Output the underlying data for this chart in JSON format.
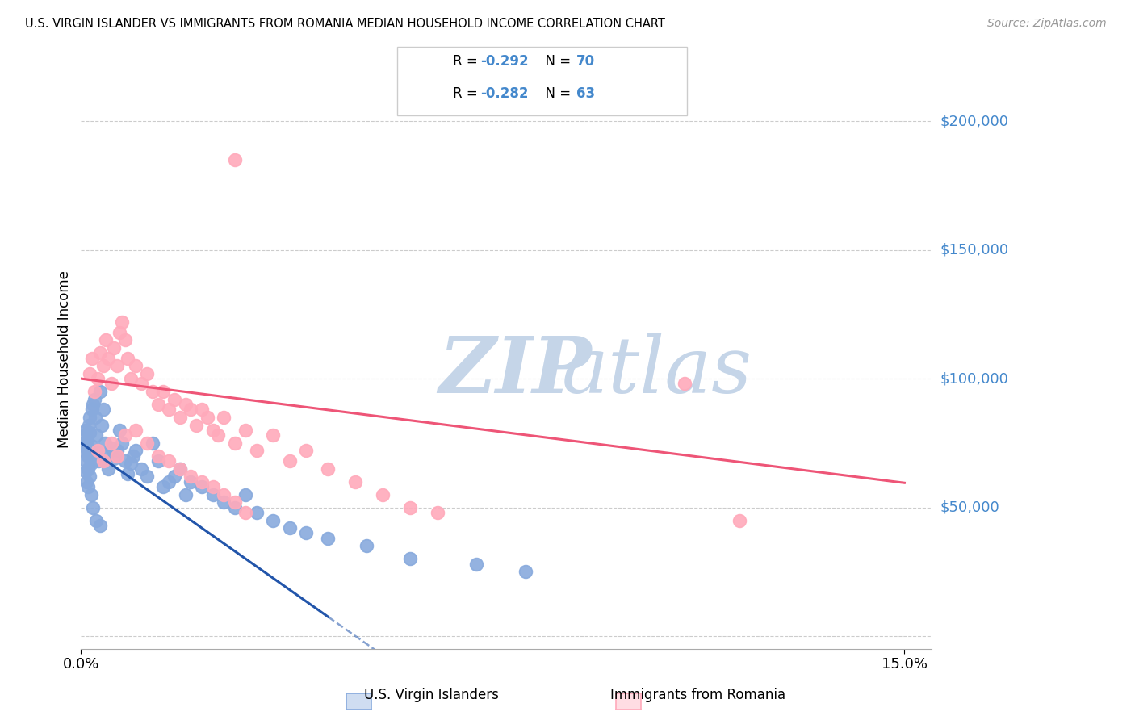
{
  "title": "U.S. VIRGIN ISLANDER VS IMMIGRANTS FROM ROMANIA MEDIAN HOUSEHOLD INCOME CORRELATION CHART",
  "source": "Source: ZipAtlas.com",
  "ylabel": "Median Household Income",
  "yticks": [
    0,
    50000,
    100000,
    150000,
    200000
  ],
  "ytick_labels": [
    "",
    "$50,000",
    "$100,000",
    "$150,000",
    "$200,000"
  ],
  "xlim": [
    0.0,
    15.5
  ],
  "ylim": [
    -5000,
    220000
  ],
  "series1_color": "#88aadd",
  "series2_color": "#ffaabb",
  "trend1_color": "#2255aa",
  "trend2_color": "#ee5577",
  "trend1_solid_end": 4.5,
  "trend1_dash_start": 4.5,
  "trend1_dash_end": 15.0,
  "watermark_zip": "ZIP",
  "watermark_atlas": "atlas",
  "watermark_color": "#c5d5e8",
  "series1_name": "U.S. Virgin Islanders",
  "series2_name": "Immigrants from Romania",
  "ytick_label_color": "#4488cc",
  "legend_r_color": "#4488cc",
  "legend_n_color": "#4488cc",
  "blue_scatter_x": [
    0.05,
    0.06,
    0.07,
    0.08,
    0.09,
    0.1,
    0.11,
    0.12,
    0.13,
    0.14,
    0.15,
    0.16,
    0.17,
    0.18,
    0.19,
    0.2,
    0.22,
    0.24,
    0.26,
    0.28,
    0.3,
    0.32,
    0.35,
    0.38,
    0.4,
    0.43,
    0.46,
    0.5,
    0.55,
    0.6,
    0.65,
    0.7,
    0.75,
    0.8,
    0.85,
    0.9,
    0.95,
    1.0,
    1.1,
    1.2,
    1.3,
    1.4,
    1.5,
    1.6,
    1.7,
    1.8,
    1.9,
    2.0,
    2.2,
    2.4,
    2.6,
    2.8,
    3.0,
    3.2,
    3.5,
    3.8,
    4.1,
    4.5,
    5.2,
    6.0,
    7.2,
    8.1,
    0.08,
    0.1,
    0.12,
    0.15,
    0.18,
    0.22,
    0.28,
    0.35
  ],
  "blue_scatter_y": [
    75000,
    72000,
    78000,
    80000,
    68000,
    73000,
    76000,
    70000,
    65000,
    82000,
    85000,
    79000,
    72000,
    67000,
    74000,
    88000,
    90000,
    92000,
    85000,
    78000,
    72000,
    68000,
    95000,
    82000,
    88000,
    75000,
    70000,
    65000,
    73000,
    69000,
    72000,
    80000,
    75000,
    68000,
    63000,
    67000,
    70000,
    72000,
    65000,
    62000,
    75000,
    68000,
    58000,
    60000,
    62000,
    65000,
    55000,
    60000,
    58000,
    55000,
    52000,
    50000,
    55000,
    48000,
    45000,
    42000,
    40000,
    38000,
    35000,
    30000,
    28000,
    25000,
    64000,
    60000,
    58000,
    62000,
    55000,
    50000,
    45000,
    43000
  ],
  "pink_scatter_x": [
    0.15,
    0.2,
    0.25,
    0.3,
    0.35,
    0.4,
    0.45,
    0.5,
    0.55,
    0.6,
    0.65,
    0.7,
    0.75,
    0.8,
    0.85,
    0.9,
    1.0,
    1.1,
    1.2,
    1.3,
    1.4,
    1.5,
    1.6,
    1.7,
    1.8,
    1.9,
    2.0,
    2.1,
    2.2,
    2.3,
    2.4,
    2.5,
    2.6,
    2.8,
    3.0,
    3.2,
    3.5,
    3.8,
    4.1,
    4.5,
    5.0,
    5.5,
    6.0,
    6.5,
    11.0,
    12.0,
    0.3,
    0.4,
    0.55,
    0.65,
    0.8,
    1.0,
    1.2,
    1.4,
    1.6,
    1.8,
    2.0,
    2.2,
    2.4,
    2.6,
    2.8,
    3.0,
    2.8
  ],
  "pink_scatter_y": [
    102000,
    108000,
    95000,
    100000,
    110000,
    105000,
    115000,
    108000,
    98000,
    112000,
    105000,
    118000,
    122000,
    115000,
    108000,
    100000,
    105000,
    98000,
    102000,
    95000,
    90000,
    95000,
    88000,
    92000,
    85000,
    90000,
    88000,
    82000,
    88000,
    85000,
    80000,
    78000,
    85000,
    75000,
    80000,
    72000,
    78000,
    68000,
    72000,
    65000,
    60000,
    55000,
    50000,
    48000,
    98000,
    45000,
    72000,
    68000,
    75000,
    70000,
    78000,
    80000,
    75000,
    70000,
    68000,
    65000,
    62000,
    60000,
    58000,
    55000,
    52000,
    48000,
    185000
  ]
}
